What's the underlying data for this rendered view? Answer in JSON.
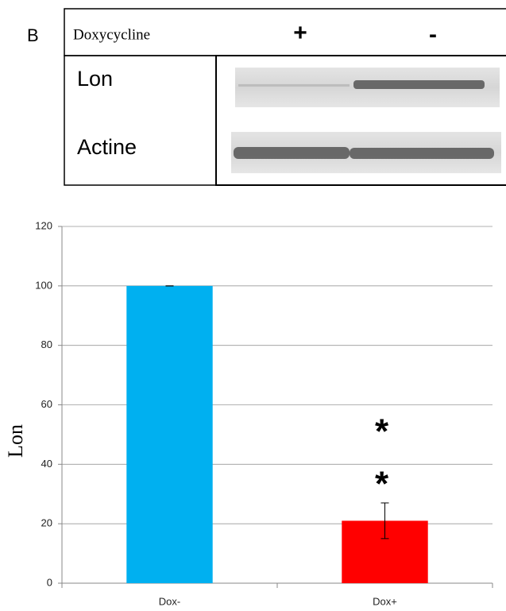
{
  "panel_label": "B",
  "blot": {
    "header": "Doxycycline",
    "conditions": [
      "+",
      "-"
    ],
    "rows": [
      "Lon",
      "Actine"
    ]
  },
  "chart_data": {
    "type": "bar",
    "categories": [
      "Dox-",
      "Dox+"
    ],
    "values": [
      100,
      21
    ],
    "errors": [
      0,
      6
    ],
    "colors": [
      "#00b0f0",
      "#ff0000"
    ],
    "ylabel": "Lon",
    "ylim": [
      0,
      120
    ],
    "yticks": [
      0,
      20,
      40,
      60,
      80,
      100,
      120
    ],
    "grid": true,
    "annotations": [
      "*",
      "*"
    ]
  }
}
